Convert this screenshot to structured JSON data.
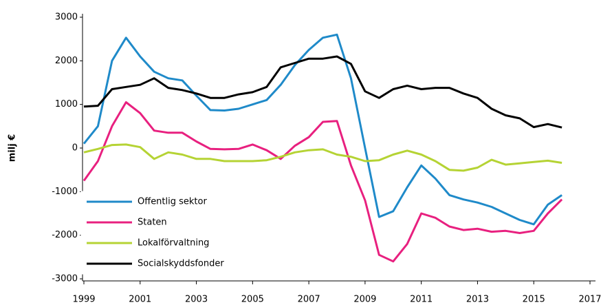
{
  "chart_data": {
    "type": "line",
    "y_label": "milj €",
    "x": [
      1999,
      1999.5,
      2000,
      2000.5,
      2001,
      2001.5,
      2002,
      2002.5,
      2003,
      2003.5,
      2004,
      2004.5,
      2005,
      2005.5,
      2006,
      2006.5,
      2007,
      2007.5,
      2008,
      2008.5,
      2009,
      2009.5,
      2010,
      2010.5,
      2011,
      2011.5,
      2012,
      2012.5,
      2013,
      2013.5,
      2014,
      2014.5,
      2015,
      2015.5,
      2016
    ],
    "series": [
      {
        "name": "Offentlig sektor",
        "color": "#1f8ac9",
        "values": [
          100,
          500,
          2000,
          2530,
          2100,
          1750,
          1600,
          1550,
          1200,
          870,
          860,
          900,
          1000,
          1100,
          1450,
          1900,
          2250,
          2530,
          2600,
          1600,
          0,
          -1580,
          -1450,
          -900,
          -400,
          -700,
          -1080,
          -1180,
          -1250,
          -1350,
          -1500,
          -1650,
          -1750,
          -1300,
          -1080
        ]
      },
      {
        "name": "Staten",
        "color": "#e8207f",
        "values": [
          -750,
          -300,
          500,
          1050,
          800,
          400,
          350,
          350,
          150,
          -20,
          -30,
          -20,
          80,
          -50,
          -250,
          50,
          250,
          600,
          620,
          -400,
          -1200,
          -2450,
          -2600,
          -2200,
          -1500,
          -1600,
          -1800,
          -1880,
          -1850,
          -1920,
          -1900,
          -1950,
          -1900,
          -1500,
          -1180
        ]
      },
      {
        "name": "Lokalförvaltning",
        "color": "#b5d334",
        "values": [
          -100,
          -20,
          70,
          80,
          20,
          -250,
          -100,
          -150,
          -250,
          -250,
          -300,
          -300,
          -300,
          -280,
          -200,
          -100,
          -50,
          -30,
          -150,
          -200,
          -300,
          -280,
          -150,
          -60,
          -150,
          -300,
          -500,
          -520,
          -450,
          -270,
          -380,
          -350,
          -320,
          -290,
          -340
        ]
      },
      {
        "name": "Socialskyddsfonder",
        "color": "#000000",
        "values": [
          950,
          970,
          1350,
          1400,
          1450,
          1600,
          1380,
          1330,
          1250,
          1150,
          1150,
          1230,
          1280,
          1400,
          1850,
          1950,
          2050,
          2050,
          2100,
          1930,
          1300,
          1150,
          1350,
          1430,
          1350,
          1380,
          1380,
          1250,
          1150,
          900,
          750,
          680,
          480,
          550,
          470
        ]
      }
    ],
    "xlim": [
      1999,
      2017
    ],
    "xticks": [
      1999,
      2001,
      2003,
      2005,
      2007,
      2009,
      2011,
      2013,
      2015,
      2017
    ],
    "ylim": [
      -3000,
      3000
    ],
    "yticks": [
      -3000,
      -2000,
      -1000,
      0,
      1000,
      2000,
      3000
    ],
    "legend": "lower left",
    "grid": false
  }
}
